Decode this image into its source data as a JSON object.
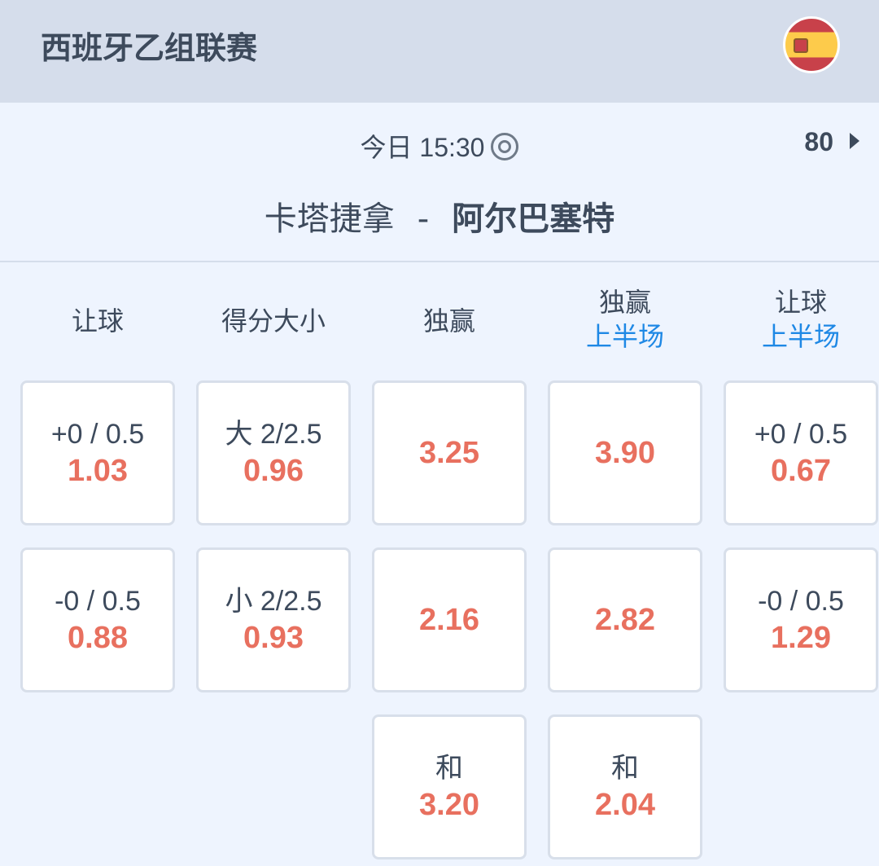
{
  "header": {
    "league": "西班牙乙组联赛",
    "flag_icon": "spain-flag"
  },
  "match": {
    "time": "今日 15:30",
    "more_count": "80",
    "home": "卡塔捷拿",
    "separator": "-",
    "away": "阿尔巴塞特"
  },
  "colors": {
    "odds": "#e8705f",
    "accent": "#1e88e5",
    "header_bg": "#d5ddeb"
  },
  "columns": [
    {
      "title": "让球",
      "sub": ""
    },
    {
      "title": "得分大小",
      "sub": ""
    },
    {
      "title": "独赢",
      "sub": ""
    },
    {
      "title": "独赢",
      "sub": "上半场"
    },
    {
      "title": "让球",
      "sub": "上半场"
    }
  ],
  "cards": [
    [
      {
        "line": "+0 / 0.5",
        "odds": "1.03"
      },
      {
        "line": "-0 / 0.5",
        "odds": "0.88"
      }
    ],
    [
      {
        "line": "大 2/2.5",
        "odds": "0.96"
      },
      {
        "line": "小 2/2.5",
        "odds": "0.93"
      }
    ],
    [
      {
        "line": "",
        "odds": "3.25"
      },
      {
        "line": "",
        "odds": "2.16"
      },
      {
        "line": "和",
        "odds": "3.20"
      }
    ],
    [
      {
        "line": "",
        "odds": "3.90"
      },
      {
        "line": "",
        "odds": "2.82"
      },
      {
        "line": "和",
        "odds": "2.04"
      }
    ],
    [
      {
        "line": "+0 / 0.5",
        "odds": "0.67"
      },
      {
        "line": "-0 / 0.5",
        "odds": "1.29"
      }
    ]
  ]
}
